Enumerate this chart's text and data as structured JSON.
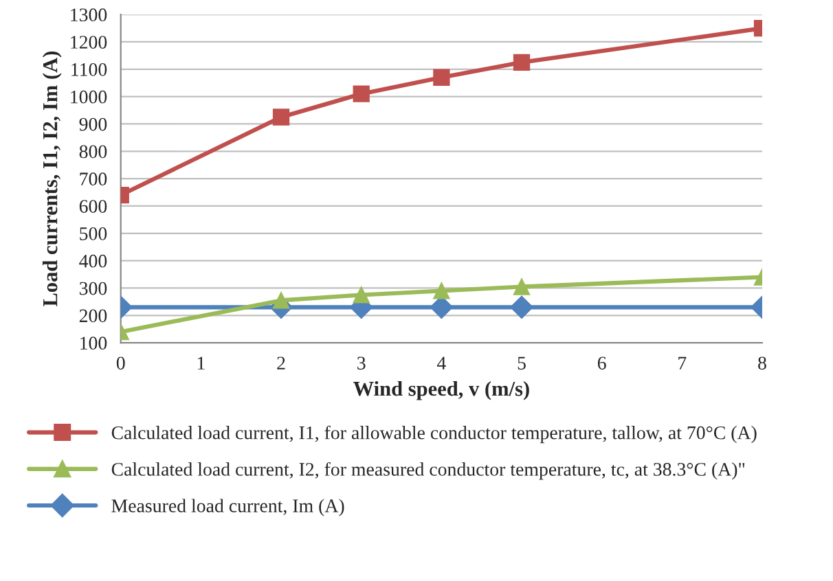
{
  "chart_data": {
    "type": "line",
    "xlabel": "Wind speed, v (m/s)",
    "ylabel": "Load currents, I1, I2, Im (A)",
    "x": [
      0,
      2,
      3,
      4,
      5,
      8
    ],
    "series": [
      {
        "name": "Calculated load current, I1, for allowable conductor temperature, tallow, at 70°C (A)",
        "color": "#c0504d",
        "marker": "square",
        "values": [
          640,
          925,
          1010,
          1070,
          1125,
          1250
        ]
      },
      {
        "name": "Calculated load current, I2, for measured conductor temperature, tc, at 38.3°C (A)\"",
        "color": "#9bbb59",
        "marker": "triangle",
        "values": [
          140,
          255,
          275,
          290,
          305,
          340
        ]
      },
      {
        "name": "Measured load current, Im (A)",
        "color": "#4f81bd",
        "marker": "diamond",
        "values": [
          230,
          230,
          230,
          230,
          230,
          230
        ]
      }
    ],
    "xlim": [
      0,
      8
    ],
    "xticks": [
      0,
      1,
      2,
      3,
      4,
      5,
      6,
      7,
      8
    ],
    "ylim": [
      100,
      1300
    ],
    "yticks": [
      100,
      200,
      300,
      400,
      500,
      600,
      700,
      800,
      900,
      1000,
      1100,
      1200,
      1300
    ],
    "grid": "y",
    "legend": "bottom",
    "line_style": "solid"
  }
}
